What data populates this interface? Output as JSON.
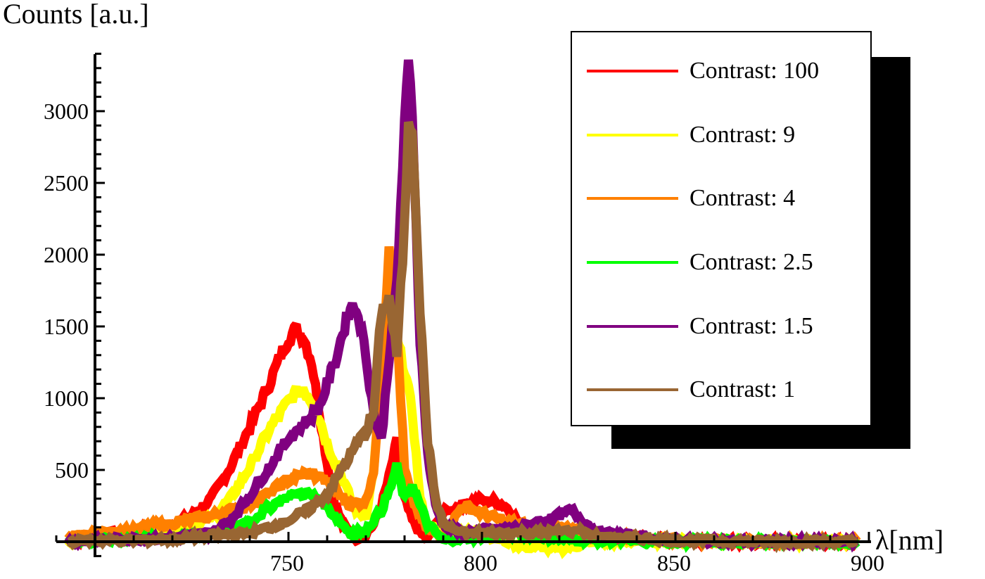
{
  "chart_data": {
    "type": "line",
    "title": "",
    "xlabel": "λ[nm]",
    "ylabel": "Counts [a.u.]",
    "xlim": [
      690,
      900
    ],
    "ylim": [
      -100,
      3400
    ],
    "x_ticks": [
      750,
      800,
      850,
      900
    ],
    "y_ticks": [
      500,
      1000,
      1500,
      2000,
      2500,
      3000
    ],
    "grid": false,
    "legend_position": "upper right",
    "series": [
      {
        "name": "Contrast: 100",
        "color": "#ff0000",
        "x": [
          693,
          700,
          710,
          720,
          725,
          730,
          735,
          740,
          745,
          748,
          750,
          752,
          754,
          756,
          758,
          760,
          762,
          764,
          766,
          768,
          770,
          772,
          774,
          776,
          778,
          780,
          782,
          784,
          786,
          790,
          795,
          800,
          803,
          806,
          810,
          820,
          830,
          850,
          870,
          897
        ],
        "y": [
          0,
          40,
          80,
          120,
          180,
          300,
          520,
          800,
          1100,
          1300,
          1420,
          1480,
          1420,
          1250,
          900,
          550,
          260,
          120,
          60,
          30,
          60,
          120,
          250,
          450,
          700,
          300,
          150,
          60,
          20,
          200,
          260,
          290,
          280,
          250,
          120,
          80,
          40,
          10,
          0,
          0
        ]
      },
      {
        "name": "Contrast: 9",
        "color": "#ffff00",
        "x": [
          693,
          700,
          710,
          720,
          730,
          735,
          740,
          745,
          750,
          752,
          754,
          756,
          758,
          760,
          762,
          764,
          766,
          768,
          770,
          772,
          774,
          776,
          778,
          780,
          782,
          784,
          786,
          790,
          800,
          810,
          820,
          830,
          850,
          870,
          897
        ],
        "y": [
          0,
          20,
          50,
          80,
          160,
          300,
          520,
          780,
          980,
          1040,
          1060,
          980,
          860,
          680,
          560,
          440,
          300,
          200,
          180,
          500,
          1100,
          1850,
          1400,
          1200,
          900,
          300,
          100,
          80,
          60,
          -30,
          -50,
          0,
          10,
          0,
          0
        ]
      },
      {
        "name": "Contrast: 4",
        "color": "#ff8000",
        "x": [
          693,
          700,
          710,
          720,
          730,
          740,
          745,
          750,
          754,
          758,
          762,
          766,
          770,
          772,
          774,
          776,
          778,
          780,
          782,
          784,
          786,
          790,
          795,
          800,
          805,
          810,
          820,
          830,
          850,
          870,
          897
        ],
        "y": [
          20,
          60,
          90,
          130,
          180,
          260,
          340,
          430,
          470,
          460,
          360,
          260,
          280,
          500,
          1100,
          2080,
          1500,
          500,
          300,
          180,
          80,
          40,
          250,
          200,
          150,
          120,
          100,
          40,
          10,
          0,
          0
        ]
      },
      {
        "name": "Contrast: 2.5",
        "color": "#00ff00",
        "x": [
          693,
          700,
          710,
          720,
          730,
          740,
          745,
          750,
          754,
          758,
          762,
          766,
          770,
          772,
          774,
          776,
          778,
          780,
          782,
          784,
          786,
          790,
          800,
          810,
          820,
          830,
          850,
          870,
          897
        ],
        "y": [
          0,
          10,
          20,
          30,
          60,
          140,
          240,
          320,
          340,
          300,
          180,
          60,
          80,
          150,
          220,
          350,
          520,
          300,
          400,
          250,
          120,
          10,
          40,
          60,
          20,
          10,
          0,
          0,
          0
        ]
      },
      {
        "name": "Contrast: 1.5",
        "color": "#800080",
        "x": [
          693,
          700,
          710,
          720,
          730,
          735,
          740,
          745,
          750,
          755,
          758,
          760,
          762,
          764,
          766,
          768,
          770,
          772,
          774,
          776,
          778,
          780,
          781,
          782,
          783,
          784,
          786,
          788,
          790,
          795,
          800,
          810,
          820,
          823,
          826,
          830,
          850,
          870,
          897
        ],
        "y": [
          0,
          10,
          20,
          30,
          60,
          150,
          320,
          520,
          720,
          850,
          940,
          1100,
          1250,
          1450,
          1650,
          1600,
          1300,
          900,
          700,
          1300,
          1800,
          2900,
          3320,
          3000,
          2200,
          1400,
          600,
          250,
          120,
          60,
          80,
          100,
          180,
          220,
          150,
          60,
          10,
          0,
          0
        ]
      },
      {
        "name": "Contrast: 1",
        "color": "#996633",
        "x": [
          693,
          700,
          710,
          720,
          730,
          740,
          745,
          750,
          755,
          760,
          762,
          764,
          766,
          768,
          770,
          772,
          774,
          776,
          778,
          780,
          781,
          782,
          783,
          784,
          786,
          788,
          790,
          795,
          800,
          810,
          820,
          825,
          830,
          850,
          870,
          890,
          897
        ],
        "y": [
          0,
          10,
          10,
          20,
          40,
          60,
          100,
          150,
          220,
          330,
          420,
          520,
          600,
          700,
          760,
          900,
          1600,
          1700,
          1300,
          2200,
          2950,
          2900,
          2300,
          1600,
          700,
          300,
          120,
          60,
          60,
          60,
          70,
          80,
          40,
          10,
          0,
          0,
          0
        ]
      }
    ]
  },
  "legend": {
    "items": [
      {
        "label": "Contrast: 100",
        "color": "#ff0000"
      },
      {
        "label": "Contrast: 9",
        "color": "#ffff00"
      },
      {
        "label": "Contrast: 4",
        "color": "#ff8000"
      },
      {
        "label": "Contrast: 2.5",
        "color": "#00ff00"
      },
      {
        "label": "Contrast: 1.5",
        "color": "#800080"
      },
      {
        "label": "Contrast: 1",
        "color": "#996633"
      }
    ]
  }
}
